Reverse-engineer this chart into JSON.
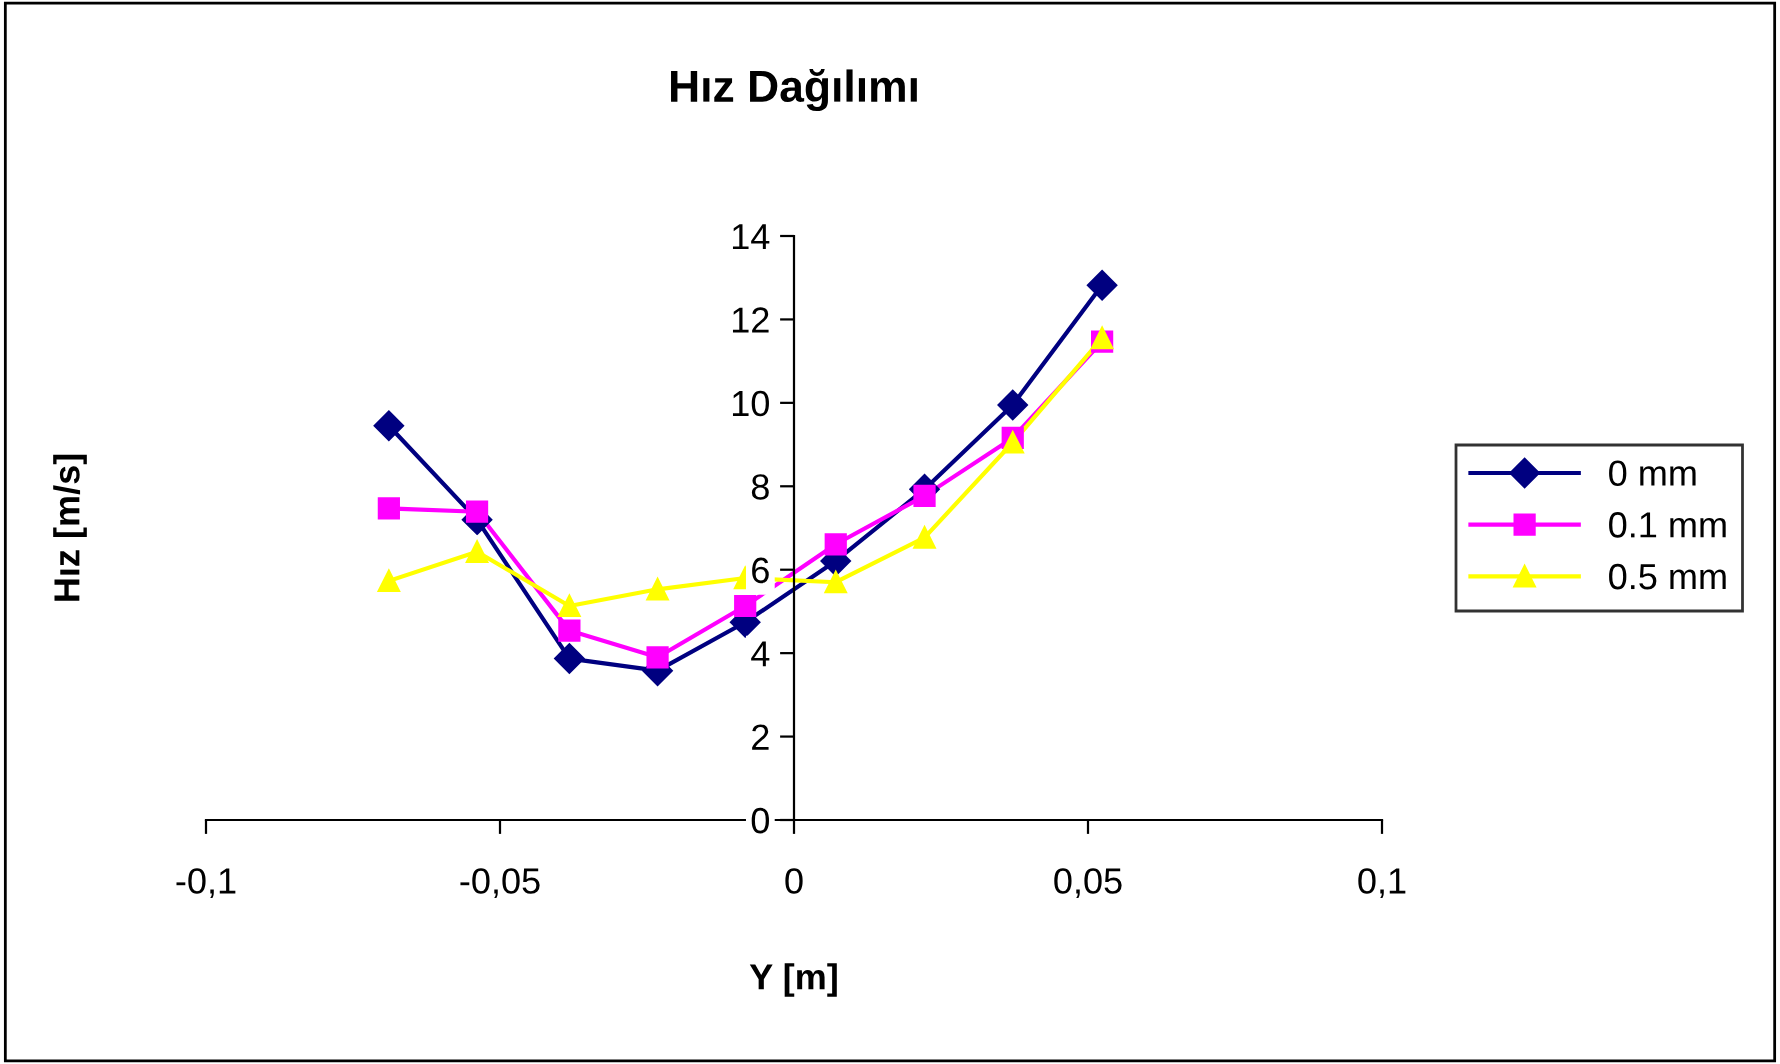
{
  "chart_data": {
    "type": "line",
    "title": "Hız Dağılımı",
    "xlabel": "Y [m]",
    "ylabel": "Hız [m/s]",
    "x": [
      -0.0689,
      -0.0539,
      -0.0382,
      -0.0232,
      -0.0083,
      0.0071,
      0.0222,
      0.0372,
      0.0524
    ],
    "series": [
      {
        "name": "0 mm",
        "color": "#000080",
        "marker": "diamond",
        "values": [
          9.45,
          7.2,
          3.87,
          3.58,
          4.74,
          6.21,
          7.93,
          9.95,
          12.82
        ]
      },
      {
        "name": "0.1 mm",
        "color": "#ff00ff",
        "marker": "square",
        "values": [
          7.47,
          7.39,
          4.54,
          3.9,
          5.13,
          6.61,
          7.77,
          9.16,
          11.47
        ]
      },
      {
        "name": "0.5 mm",
        "color": "#ffff00",
        "marker": "triangle",
        "values": [
          5.73,
          6.43,
          5.13,
          5.53,
          5.8,
          5.7,
          6.77,
          9.05,
          11.55
        ]
      }
    ],
    "xlim": [
      -0.1,
      0.1
    ],
    "xticks": [
      {
        "value": -0.1,
        "label": "-0,1"
      },
      {
        "value": -0.05,
        "label": "-0,05"
      },
      {
        "value": 0,
        "label": "0"
      },
      {
        "value": 0.05,
        "label": "0,05"
      },
      {
        "value": 0.1,
        "label": "0,1"
      }
    ],
    "ylim": [
      0,
      14
    ],
    "yticks": [
      0,
      2,
      4,
      6,
      8,
      10,
      12,
      14
    ],
    "grid": false,
    "legend": "right",
    "line_style": "solid"
  }
}
